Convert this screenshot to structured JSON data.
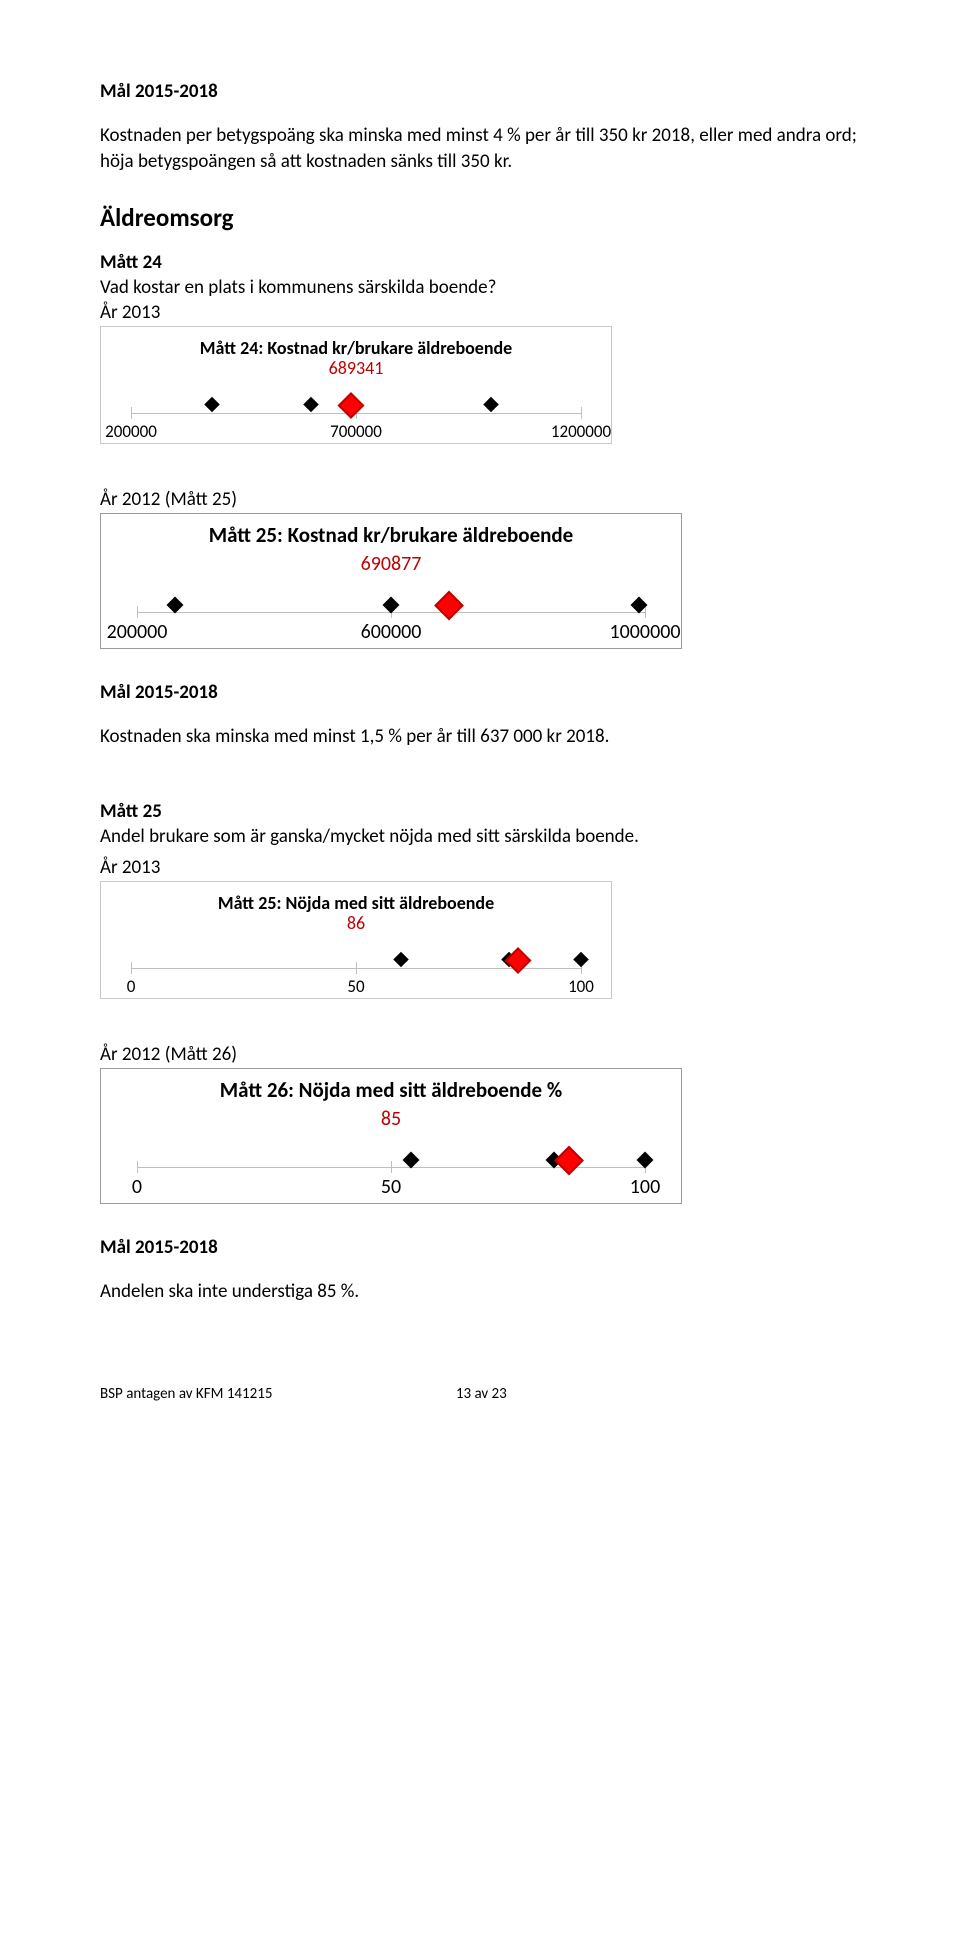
{
  "intro": {
    "goal_heading": "Mål 2015-2018",
    "body": "Kostnaden per betygspoäng ska minska med minst 4 % per år till 350 kr 2018, eller med andra ord; höja betygspoängen så att kostnaden sänks till 350 kr."
  },
  "section_heading": "Äldreomsorg",
  "measure24": {
    "heading": "Mått 24",
    "question": "Vad kostar en plats i kommunens särskilda boende?",
    "year": "År 2013",
    "chart": {
      "title": "Mått 24: Kostnad kr/brukare äldreboende",
      "callout": "689341",
      "callout_color": "#c00000",
      "xmin": 200000,
      "xmax": 1200000,
      "ticks": [
        200000,
        700000,
        1200000
      ],
      "black_markers": [
        380000,
        600000,
        1000000
      ],
      "red_marker": 689341
    }
  },
  "measure25_prev": {
    "heading": "År 2012 (Mått 25)",
    "chart": {
      "title": "Mått 25: Kostnad kr/brukare äldreboende",
      "callout": "690877",
      "callout_color": "#c00000",
      "xmin": 200000,
      "xmax": 1000000,
      "ticks": [
        200000,
        600000,
        1000000
      ],
      "black_markers": [
        260000,
        600000,
        990000
      ],
      "red_marker": 690877
    }
  },
  "goal24": {
    "heading": "Mål 2015-2018",
    "body": "Kostnaden ska minska med minst 1,5 % per år till 637 000 kr 2018."
  },
  "measure25": {
    "heading": "Mått 25",
    "question": "Andel brukare som är ganska/mycket nöjda med sitt särskilda boende.",
    "year": "År 2013",
    "chart": {
      "title": "Mått 25: Nöjda med sitt äldreboende",
      "callout": "86",
      "callout_color": "#c00000",
      "xmin": 0,
      "xmax": 100,
      "ticks": [
        0,
        50,
        100
      ],
      "black_markers": [
        60,
        84,
        100
      ],
      "red_marker": 86
    }
  },
  "measure26_prev": {
    "heading": "År 2012 (Mått 26)",
    "chart": {
      "title": "Mått 26: Nöjda med sitt äldreboende %",
      "callout": "85",
      "callout_color": "#c00000",
      "xmin": 0,
      "xmax": 100,
      "ticks": [
        0,
        50,
        100
      ],
      "black_markers": [
        54,
        82,
        100
      ],
      "red_marker": 85
    }
  },
  "goal25": {
    "heading": "Mål 2015-2018",
    "body": "Andelen ska inte understiga 85 %."
  },
  "footer": {
    "left": "BSP antagen av KFM 141215",
    "right": "13 av 23"
  }
}
